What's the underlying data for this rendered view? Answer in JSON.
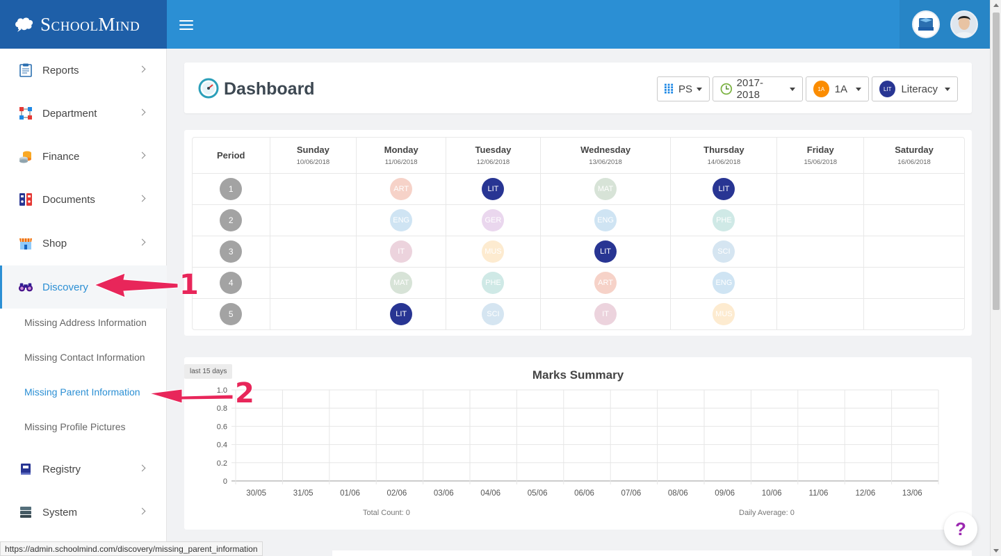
{
  "app": {
    "name": "SchoolMind"
  },
  "sidebar": {
    "items": [
      {
        "label": "Reports",
        "icon": "clipboard-icon"
      },
      {
        "label": "Department",
        "icon": "org-chart-icon"
      },
      {
        "label": "Finance",
        "icon": "coins-icon"
      },
      {
        "label": "Documents",
        "icon": "binders-icon"
      },
      {
        "label": "Shop",
        "icon": "shop-icon"
      },
      {
        "label": "Discovery",
        "icon": "binoculars-icon"
      },
      {
        "label": "Registry",
        "icon": "registry-book-icon"
      },
      {
        "label": "System",
        "icon": "server-icon"
      }
    ],
    "discovery_sub": [
      "Missing Address Information",
      "Missing Contact Information",
      "Missing Parent Information",
      "Missing Profile Pictures"
    ]
  },
  "dashboard": {
    "title": "Dashboard",
    "filters": {
      "school": "PS",
      "year": "2017-2018",
      "class_badge": "1A",
      "class": "1A",
      "subject_badge": "LIT",
      "subject": "Literacy"
    }
  },
  "timetable": {
    "period_header": "Period",
    "days": [
      {
        "name": "Sunday",
        "date": "10/06/2018"
      },
      {
        "name": "Monday",
        "date": "11/06/2018"
      },
      {
        "name": "Tuesday",
        "date": "12/06/2018"
      },
      {
        "name": "Wednesday",
        "date": "13/06/2018"
      },
      {
        "name": "Thursday",
        "date": "14/06/2018"
      },
      {
        "name": "Friday",
        "date": "15/06/2018"
      },
      {
        "name": "Saturday",
        "date": "16/06/2018"
      }
    ],
    "rows": [
      {
        "period": "1",
        "cells": [
          "",
          "ART",
          "LIT",
          "MAT",
          "LIT",
          "",
          ""
        ]
      },
      {
        "period": "2",
        "cells": [
          "",
          "ENG",
          "GER",
          "ENG",
          "PHE",
          "",
          ""
        ]
      },
      {
        "period": "3",
        "cells": [
          "",
          "IT",
          "MUS",
          "LIT",
          "SCI",
          "",
          ""
        ]
      },
      {
        "period": "4",
        "cells": [
          "",
          "MAT",
          "PHE",
          "ART",
          "ENG",
          "",
          ""
        ]
      },
      {
        "period": "5",
        "cells": [
          "",
          "LIT",
          "SCI",
          "IT",
          "MUS",
          "",
          ""
        ]
      }
    ],
    "subject_colors": {
      "LIT": "#283593",
      "ART": "#f6d2c8",
      "MAT": "#d7e3d7",
      "ENG": "#cfe4f3",
      "GER": "#ead7ee",
      "PHE": "#cfe9e6",
      "IT": "#ecd3dd",
      "MUS": "#fdebd0",
      "SCI": "#d5e5f1"
    }
  },
  "marks": {
    "tag": "last 15 days",
    "title": "Marks Summary",
    "total_count": "Total Count: 0",
    "daily_average": "Daily Average: 0"
  },
  "chart_data": {
    "type": "line",
    "title": "Marks Summary",
    "categories": [
      "30/05",
      "31/05",
      "01/06",
      "02/06",
      "03/06",
      "04/06",
      "05/06",
      "06/06",
      "07/06",
      "08/06",
      "09/06",
      "10/06",
      "11/06",
      "12/06",
      "13/06"
    ],
    "y_ticks": [
      "0",
      "0.2",
      "0.4",
      "0.6",
      "0.8",
      "1.0"
    ],
    "ylim": [
      0,
      1.0
    ],
    "series": [],
    "grid": true
  },
  "help": {
    "label": "?"
  },
  "status_bar": {
    "url": "https://admin.schoolmind.com/discovery/missing_parent_information"
  },
  "annotations": {
    "one": "1",
    "two": "2"
  }
}
